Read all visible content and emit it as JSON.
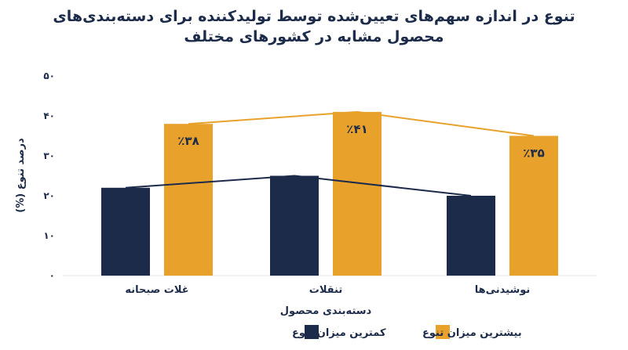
{
  "title": {
    "line1": "تنوع در اندازه سهم‌های تعیین‌شده توسط تولیدکننده برای دسته‌بندی‌های",
    "line2": "محصول مشابه در کشورهای مختلف"
  },
  "chart_data": {
    "type": "bar",
    "categories": [
      "غلات صبحانه",
      "تنقلات",
      "نوشیدنی‌ها"
    ],
    "series": [
      {
        "name": "کمترین میزان تنوع",
        "values": [
          22,
          25,
          20
        ],
        "labels": [
          "٪۲۲",
          "٪۲۵",
          "٪۲۰"
        ],
        "color": "#1c2b4a"
      },
      {
        "name": "بیشترین میزان تنوع",
        "values": [
          38,
          41,
          35
        ],
        "labels": [
          "٪۳۸",
          "٪۴۱",
          "٪۳۵"
        ],
        "color": "#e8a22c"
      }
    ],
    "overlay_lines": true,
    "ylim": [
      0,
      50
    ],
    "yticks": [
      0,
      10,
      20,
      30,
      40,
      50
    ],
    "ytick_labels": [
      "۰",
      "۱۰",
      "۲۰",
      "۳۰",
      "۴۰",
      "۵۰"
    ],
    "xlabel": "دسته‌بندی محصول",
    "ylabel": "درصد تنوع (%)",
    "grid": false,
    "legend_position": "bottom-center"
  }
}
